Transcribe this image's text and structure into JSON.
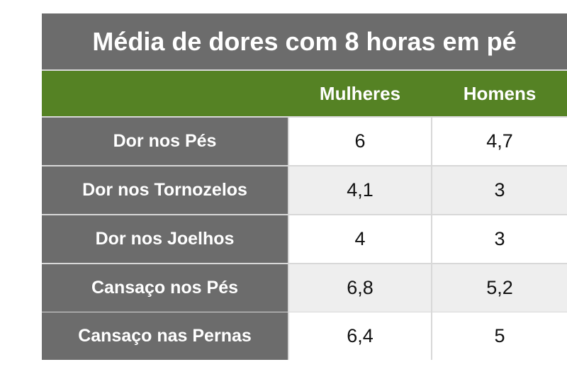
{
  "chart_data": {
    "type": "table",
    "title": "Média de dores com 8 horas em pé",
    "columns": [
      "Mulheres",
      "Homens"
    ],
    "rows": [
      {
        "label": "Dor nos Pés",
        "values": [
          "6",
          "4,7"
        ]
      },
      {
        "label": "Dor nos Tornozelos",
        "values": [
          "4,1",
          "3"
        ]
      },
      {
        "label": "Dor nos Joelhos",
        "values": [
          "4",
          "3"
        ]
      },
      {
        "label": "Cansaço nos Pés",
        "values": [
          "6,8",
          "5,2"
        ]
      },
      {
        "label": "Cansaço nas Pernas",
        "values": [
          "6,4",
          "5"
        ]
      }
    ]
  },
  "colors": {
    "title_bg": "#6c6c6c",
    "header_bg": "#558224",
    "row_label_bg": "#6c6c6c",
    "cell_light": "#ffffff",
    "cell_alt": "#eeeeee"
  }
}
